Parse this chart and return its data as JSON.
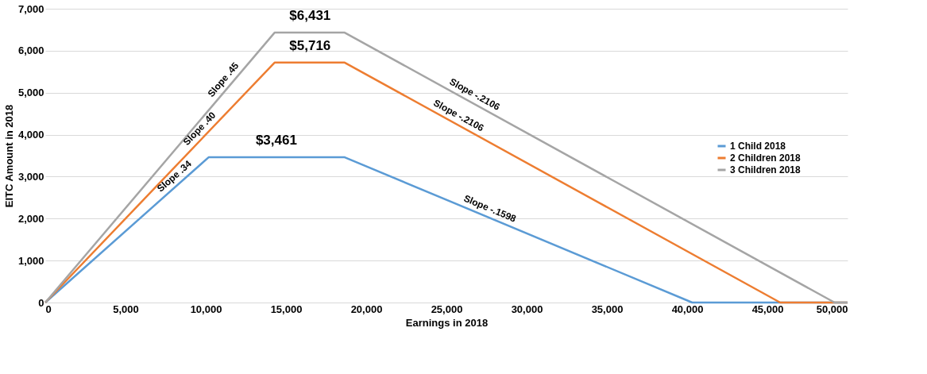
{
  "chart_data": {
    "type": "line",
    "xlabel": "Earnings in 2018",
    "ylabel": "EITC Amount in 2018",
    "xlim": [
      0,
      50000
    ],
    "xticks": [
      0,
      {
        "value": 5000,
        "label": "5,000"
      },
      {
        "value": 10000,
        "label": "10,000"
      },
      {
        "value": 15000,
        "label": "15,000"
      },
      {
        "value": 20000,
        "label": "20,000"
      },
      {
        "value": 25000,
        "label": "25,000"
      },
      {
        "value": 30000,
        "label": "30,000"
      },
      {
        "value": 35000,
        "label": "35,000"
      },
      {
        "value": 40000,
        "label": "40,000"
      },
      {
        "value": 45000,
        "label": "45,000"
      },
      {
        "value": 50000,
        "label": "50,000"
      }
    ],
    "ylim": [
      0,
      7000
    ],
    "yticks": [
      0,
      {
        "value": 1000,
        "label": "1,000"
      },
      {
        "value": 2000,
        "label": "2,000"
      },
      {
        "value": 3000,
        "label": "3,000"
      },
      {
        "value": 4000,
        "label": "4,000"
      },
      {
        "value": 5000,
        "label": "5,000"
      },
      {
        "value": 6000,
        "label": "6,000"
      },
      {
        "value": 7000,
        "label": "7,000"
      }
    ],
    "grid": "y",
    "legend": "right",
    "marker": "none",
    "line_style": "solid",
    "series": [
      {
        "name": "1 Child 2018",
        "color": "#5b9bd5",
        "x": [
          0,
          10180,
          18660,
          40320,
          50000
        ],
        "values": [
          0,
          3461,
          3461,
          0,
          0
        ]
      },
      {
        "name": "2 Children 2018",
        "color": "#ed7d31",
        "x": [
          0,
          14290,
          18660,
          45802,
          50000
        ],
        "values": [
          0,
          5716,
          5716,
          0,
          0
        ]
      },
      {
        "name": "3 Children 2018",
        "color": "#a5a5a5",
        "x": [
          0,
          14290,
          18660,
          49194,
          50000
        ],
        "values": [
          0,
          6431,
          6431,
          0,
          0
        ]
      }
    ],
    "annotations": [
      {
        "text": "$6,431",
        "x": 16500,
        "y": 6431
      },
      {
        "text": "$5,716",
        "x": 16500,
        "y": 5716
      },
      {
        "text": "$3,461",
        "x": 14400,
        "y": 3461
      },
      {
        "text": "Slope .45",
        "x": 11500,
        "y": 5175
      },
      {
        "text": "Slope .40",
        "x": 10000,
        "y": 4000
      },
      {
        "text": "Slope .34",
        "x": 8400,
        "y": 2856
      },
      {
        "text": "Slope  -.2106",
        "x": 26500,
        "y": 4780
      },
      {
        "text": "Slope -.2106",
        "x": 25500,
        "y": 4276
      },
      {
        "text": "Slope -.1598",
        "x": 27500,
        "y": 2048
      }
    ]
  }
}
